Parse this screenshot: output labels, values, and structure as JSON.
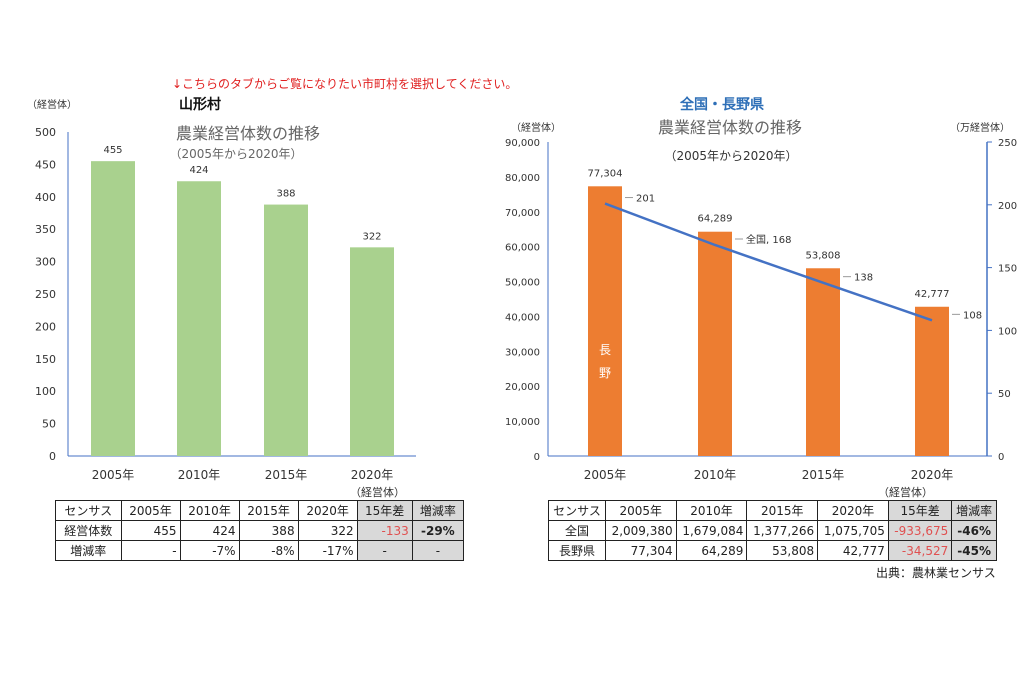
{
  "notice": "↓こちらのタブからご覧になりたい市町村を選択してください。",
  "chart_data": [
    {
      "type": "bar",
      "region": "山形村",
      "title": "農業経営体数の推移",
      "subtitle": "（2005年から2020年）",
      "ylabel": "（経営体）",
      "ylim": [
        0,
        500
      ],
      "yticks": [
        "0",
        "50",
        "100",
        "150",
        "200",
        "250",
        "300",
        "350",
        "400",
        "450",
        "500"
      ],
      "categories": [
        "2005年",
        "2010年",
        "2015年",
        "2020年"
      ],
      "values": [
        455,
        424,
        388,
        322
      ],
      "data_labels": [
        "455",
        "424",
        "388",
        "322"
      ],
      "color": "#a9d18e",
      "grid": false
    },
    {
      "type": "bar+line",
      "region": "全国・長野県",
      "title": "農業経営体数の推移",
      "subtitle": "（2005年から2020年）",
      "ylabel": "（経営体）",
      "y2label": "（万経営体）",
      "ylim": [
        0,
        90000
      ],
      "y2lim": [
        0,
        250
      ],
      "yticks": [
        "0",
        "10,000",
        "20,000",
        "30,000",
        "40,000",
        "50,000",
        "60,000",
        "70,000",
        "80,000",
        "90,000"
      ],
      "y2ticks": [
        "0",
        "50",
        "100",
        "150",
        "200",
        "250"
      ],
      "categories": [
        "2005年",
        "2010年",
        "2015年",
        "2020年"
      ],
      "series": [
        {
          "name": "長野",
          "kind": "bar",
          "axis": "left",
          "values": [
            77304,
            64289,
            53808,
            42777
          ],
          "data_labels": [
            "77,304",
            "64,289",
            "53,808",
            "42,777"
          ],
          "color": "#ed7d31"
        },
        {
          "name": "全国",
          "kind": "line",
          "axis": "right",
          "values": [
            201,
            168,
            138,
            108
          ],
          "data_labels": [
            "201",
            "全国, 168",
            "138",
            "108"
          ],
          "color": "#4472c4"
        }
      ],
      "grid": false
    }
  ],
  "tables": {
    "left": {
      "unit": "（経営体）",
      "header": [
        "センサス",
        "2005年",
        "2010年",
        "2015年",
        "2020年",
        "15年差",
        "増減率"
      ],
      "rows": [
        [
          "経営体数",
          "455",
          "424",
          "388",
          "322",
          "-133",
          "-29%"
        ],
        [
          "増減率",
          "-",
          "-7%",
          "-8%",
          "-17%",
          "-",
          "-"
        ]
      ]
    },
    "right": {
      "unit": "（経営体）",
      "header": [
        "センサス",
        "2005年",
        "2010年",
        "2015年",
        "2020年",
        "15年差",
        "増減率"
      ],
      "rows": [
        [
          "全国",
          "2,009,380",
          "1,679,084",
          "1,377,266",
          "1,075,705",
          "-933,675",
          "-46%"
        ],
        [
          "長野県",
          "77,304",
          "64,289",
          "53,808",
          "42,777",
          "-34,527",
          "-45%"
        ]
      ]
    }
  },
  "source": "出典：農林業センサス"
}
